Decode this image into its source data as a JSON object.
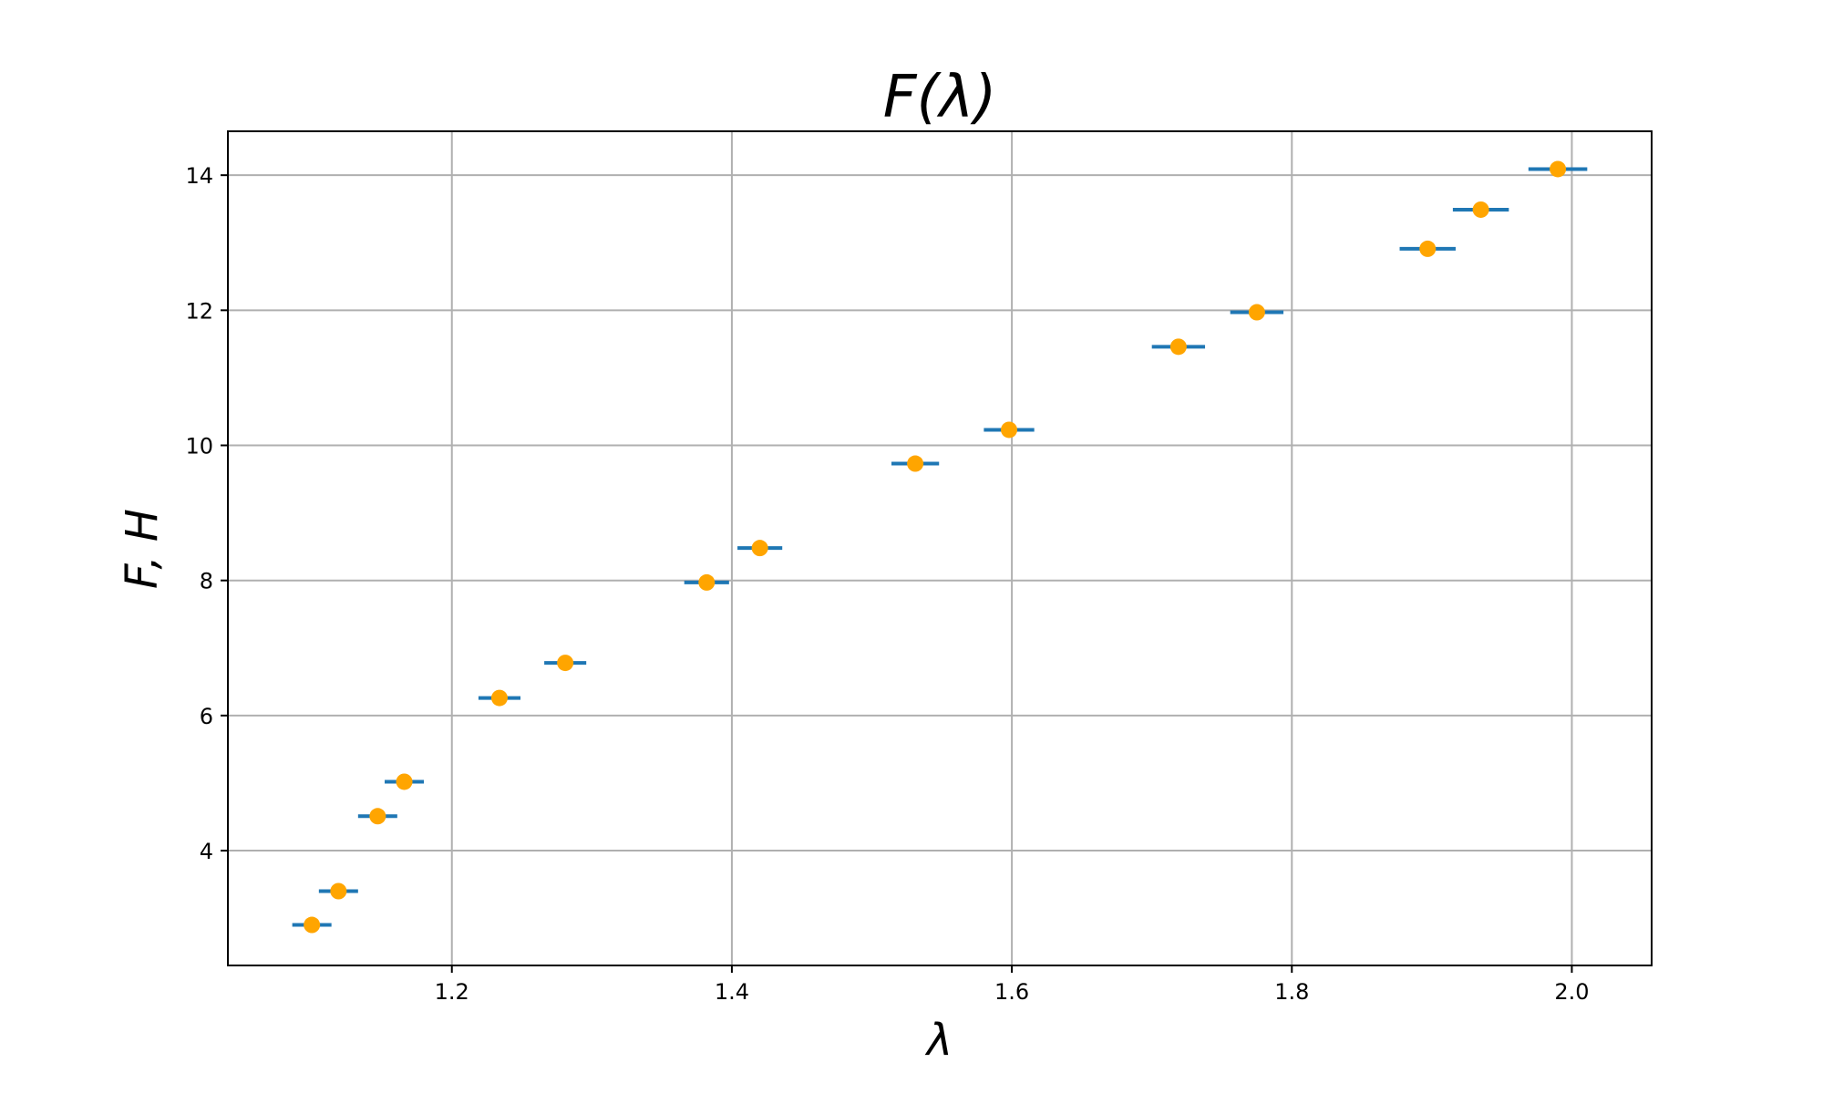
{
  "chart_data": {
    "type": "scatter",
    "title": "F(λ)",
    "xlabel": "λ",
    "ylabel": "F, H",
    "xlim": [
      1.04,
      2.057
    ],
    "ylim": [
      2.3,
      14.65
    ],
    "xticks": [
      {
        "value": 1.2,
        "label": "1.2"
      },
      {
        "value": 1.4,
        "label": "1.4"
      },
      {
        "value": 1.6,
        "label": "1.6"
      },
      {
        "value": 1.8,
        "label": "1.8"
      },
      {
        "value": 2.0,
        "label": "2.0"
      }
    ],
    "yticks": [
      {
        "value": 4,
        "label": "4"
      },
      {
        "value": 6,
        "label": "6"
      },
      {
        "value": 8,
        "label": "8"
      },
      {
        "value": 10,
        "label": "10"
      },
      {
        "value": 12,
        "label": "12"
      },
      {
        "value": 14,
        "label": "14"
      }
    ],
    "grid": true,
    "series": [
      {
        "color": "#1f77b4",
        "marker": "hline",
        "points": [
          {
            "x": 1.1,
            "y": 2.9,
            "xerr": 0.014
          },
          {
            "x": 1.119,
            "y": 3.4,
            "xerr": 0.014
          },
          {
            "x": 1.147,
            "y": 4.51,
            "xerr": 0.014
          },
          {
            "x": 1.166,
            "y": 5.02,
            "xerr": 0.014
          },
          {
            "x": 1.234,
            "y": 6.26,
            "xerr": 0.015
          },
          {
            "x": 1.281,
            "y": 6.78,
            "xerr": 0.015
          },
          {
            "x": 1.382,
            "y": 7.97,
            "xerr": 0.016
          },
          {
            "x": 1.42,
            "y": 8.48,
            "xerr": 0.016
          },
          {
            "x": 1.531,
            "y": 9.73,
            "xerr": 0.017
          },
          {
            "x": 1.598,
            "y": 10.23,
            "xerr": 0.018
          },
          {
            "x": 1.719,
            "y": 11.46,
            "xerr": 0.019
          },
          {
            "x": 1.775,
            "y": 11.97,
            "xerr": 0.019
          },
          {
            "x": 1.897,
            "y": 12.91,
            "xerr": 0.02
          },
          {
            "x": 1.935,
            "y": 13.49,
            "xerr": 0.02
          },
          {
            "x": 1.99,
            "y": 14.09,
            "xerr": 0.021
          }
        ]
      },
      {
        "color": "#ffa500",
        "marker": "circle",
        "points": [
          {
            "x": 1.1,
            "y": 2.9
          },
          {
            "x": 1.119,
            "y": 3.4
          },
          {
            "x": 1.147,
            "y": 4.51
          },
          {
            "x": 1.166,
            "y": 5.02
          },
          {
            "x": 1.234,
            "y": 6.26
          },
          {
            "x": 1.281,
            "y": 6.78
          },
          {
            "x": 1.382,
            "y": 7.97
          },
          {
            "x": 1.42,
            "y": 8.48
          },
          {
            "x": 1.531,
            "y": 9.73
          },
          {
            "x": 1.598,
            "y": 10.23
          },
          {
            "x": 1.719,
            "y": 11.46
          },
          {
            "x": 1.775,
            "y": 11.97
          },
          {
            "x": 1.897,
            "y": 12.91
          },
          {
            "x": 1.935,
            "y": 13.49
          },
          {
            "x": 1.99,
            "y": 14.09
          }
        ]
      }
    ]
  }
}
